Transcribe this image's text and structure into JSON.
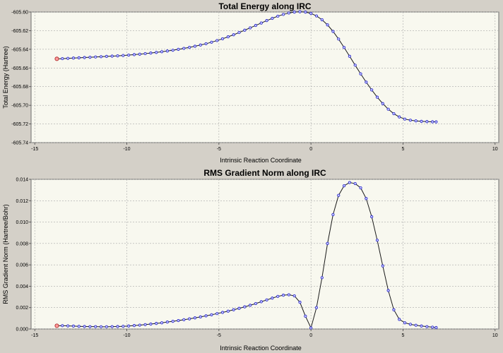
{
  "chart_data": [
    {
      "type": "line",
      "title": "Total Energy along IRC",
      "xlabel": "Intrinsic Reaction Coordinate",
      "ylabel": "Total Energy (Hartree)",
      "xlim": [
        -15.2,
        10.2
      ],
      "ylim": [
        -605.74,
        -605.6
      ],
      "xticks": [
        -15,
        -10,
        -5,
        0,
        5,
        10
      ],
      "xtick_labels": [
        "-15",
        "-10",
        "-5",
        "0",
        "5",
        "10"
      ],
      "yticks": [
        -605.6,
        -605.62,
        -605.64,
        -605.66,
        -605.68,
        -605.7,
        -605.72,
        -605.74
      ],
      "ytick_labels": [
        "-605.60",
        "-605.62",
        "-605.64",
        "-605.66",
        "-605.68",
        "-605.70",
        "-605.72",
        "-605.74"
      ],
      "grid": true,
      "marker_color": "#2020c8",
      "first_marker_color": "#b03030",
      "line_color": "#1a1a1a",
      "background": "#f8f8ef",
      "series": [
        {
          "x": [
            -13.8,
            -13.5,
            -13.2,
            -12.9,
            -12.6,
            -12.3,
            -12.0,
            -11.7,
            -11.4,
            -11.1,
            -10.8,
            -10.5,
            -10.2,
            -9.9,
            -9.6,
            -9.3,
            -9.0,
            -8.7,
            -8.4,
            -8.1,
            -7.8,
            -7.5,
            -7.2,
            -6.9,
            -6.6,
            -6.3,
            -6.0,
            -5.7,
            -5.4,
            -5.1,
            -4.8,
            -4.5,
            -4.2,
            -3.9,
            -3.6,
            -3.3,
            -3.0,
            -2.7,
            -2.4,
            -2.1,
            -1.8,
            -1.5,
            -1.2,
            -0.9,
            -0.6,
            -0.3,
            0.0,
            0.3,
            0.6,
            0.9,
            1.2,
            1.5,
            1.8,
            2.1,
            2.4,
            2.7,
            3.0,
            3.3,
            3.6,
            3.9,
            4.2,
            4.5,
            4.8,
            5.1,
            5.4,
            5.7,
            6.0,
            6.3,
            6.6,
            6.8
          ],
          "y": [
            -605.6502,
            -605.65,
            -605.6497,
            -605.6494,
            -605.6491,
            -605.6488,
            -605.6485,
            -605.6482,
            -605.6479,
            -605.6476,
            -605.6473,
            -605.647,
            -605.6466,
            -605.6462,
            -605.6457,
            -605.6452,
            -605.6446,
            -605.644,
            -605.6433,
            -605.6426,
            -605.6418,
            -605.641,
            -605.64,
            -605.639,
            -605.6379,
            -605.6367,
            -605.6354,
            -605.634,
            -605.6324,
            -605.6306,
            -605.6287,
            -605.6266,
            -605.6244,
            -605.622,
            -605.6195,
            -605.617,
            -605.6144,
            -605.6118,
            -605.6092,
            -605.6068,
            -605.6045,
            -605.6026,
            -605.6011,
            -605.6001,
            -605.5997,
            -605.6001,
            -605.6015,
            -605.6042,
            -605.6083,
            -605.6138,
            -605.6208,
            -605.629,
            -605.638,
            -605.6475,
            -605.657,
            -605.6663,
            -605.6752,
            -605.6835,
            -605.6913,
            -605.6982,
            -605.7042,
            -605.709,
            -605.7125,
            -605.7148,
            -605.716,
            -605.7167,
            -605.7172,
            -605.7175,
            -605.7177,
            -605.7178
          ]
        }
      ]
    },
    {
      "type": "line",
      "title": "RMS Gradient Norm along IRC",
      "xlabel": "Intrinsic Reaction Coordinate",
      "ylabel": "RMS Gradient Norm (Hartree/Bohr)",
      "xlim": [
        -15.2,
        10.2
      ],
      "ylim": [
        0.0,
        0.014
      ],
      "xticks": [
        -15,
        -10,
        -5,
        0,
        5,
        10
      ],
      "xtick_labels": [
        "-15",
        "-10",
        "-5",
        "0",
        "5",
        "10"
      ],
      "yticks": [
        0.0,
        0.002,
        0.004,
        0.006,
        0.008,
        0.01,
        0.012,
        0.014
      ],
      "ytick_labels": [
        "0.000",
        "0.002",
        "0.004",
        "0.006",
        "0.008",
        "0.010",
        "0.012",
        "0.014"
      ],
      "grid": true,
      "marker_color": "#2020c8",
      "first_marker_color": "#b03030",
      "line_color": "#1a1a1a",
      "background": "#f8f8ef",
      "series": [
        {
          "x": [
            -13.8,
            -13.5,
            -13.2,
            -12.9,
            -12.6,
            -12.3,
            -12.0,
            -11.7,
            -11.4,
            -11.1,
            -10.8,
            -10.5,
            -10.2,
            -9.9,
            -9.6,
            -9.3,
            -9.0,
            -8.7,
            -8.4,
            -8.1,
            -7.8,
            -7.5,
            -7.2,
            -6.9,
            -6.6,
            -6.3,
            -6.0,
            -5.7,
            -5.4,
            -5.1,
            -4.8,
            -4.5,
            -4.2,
            -3.9,
            -3.6,
            -3.3,
            -3.0,
            -2.7,
            -2.4,
            -2.1,
            -1.8,
            -1.5,
            -1.2,
            -0.9,
            -0.6,
            -0.3,
            0.0,
            0.3,
            0.6,
            0.9,
            1.2,
            1.5,
            1.8,
            2.1,
            2.4,
            2.7,
            3.0,
            3.3,
            3.6,
            3.9,
            4.2,
            4.5,
            4.8,
            5.1,
            5.4,
            5.7,
            6.0,
            6.3,
            6.6,
            6.8
          ],
          "y": [
            0.0003,
            0.00031,
            0.00029,
            0.00027,
            0.00025,
            0.00023,
            0.00022,
            0.00022,
            0.00021,
            0.00021,
            0.00022,
            0.00023,
            0.00025,
            0.00028,
            0.00032,
            0.00036,
            0.00041,
            0.00046,
            0.00052,
            0.00058,
            0.00065,
            0.00072,
            0.00079,
            0.00087,
            0.00095,
            0.00104,
            0.00113,
            0.00123,
            0.00133,
            0.00144,
            0.00155,
            0.00167,
            0.0018,
            0.00193,
            0.00207,
            0.00222,
            0.00238,
            0.00255,
            0.00272,
            0.00289,
            0.00305,
            0.00316,
            0.0032,
            0.0031,
            0.0025,
            0.0012,
            0.0001,
            0.002,
            0.0048,
            0.008,
            0.0107,
            0.0125,
            0.0134,
            0.0137,
            0.0136,
            0.0132,
            0.0122,
            0.0105,
            0.0083,
            0.0059,
            0.0036,
            0.0018,
            0.0009,
            0.00058,
            0.00044,
            0.00035,
            0.00028,
            0.00022,
            0.00017,
            0.00013
          ]
        }
      ]
    }
  ]
}
